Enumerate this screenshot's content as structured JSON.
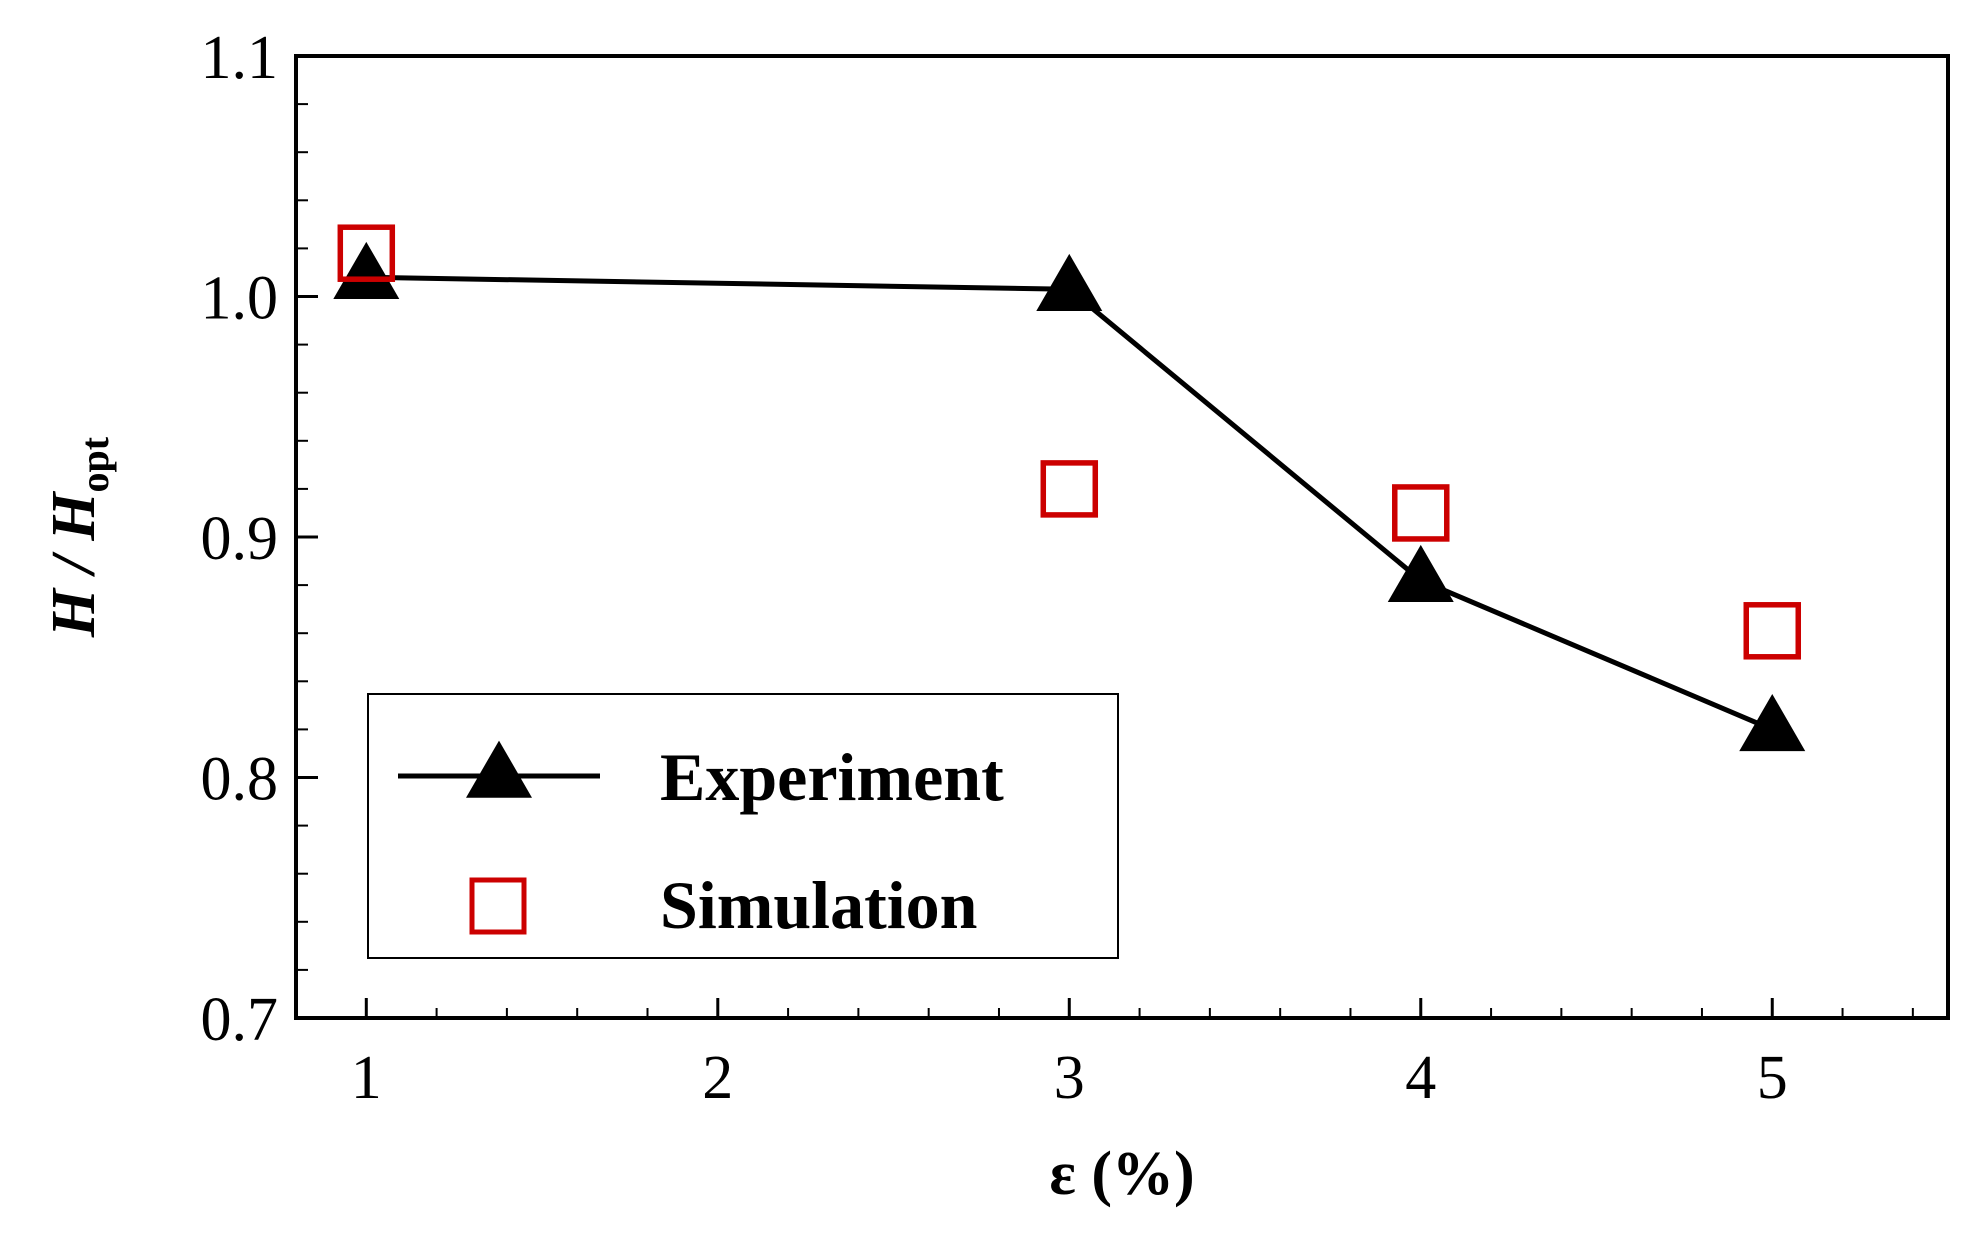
{
  "chart_data": {
    "type": "line",
    "xlabel": "ε (%)",
    "ylabel": {
      "main": "H / H",
      "subscript": "opt"
    },
    "xlim": [
      0.8,
      5.5
    ],
    "ylim": [
      0.7,
      1.1
    ],
    "x_ticks": [
      "1",
      "2",
      "3",
      "4",
      "5"
    ],
    "y_ticks": [
      "0.7",
      "0.8",
      "0.9",
      "1.0",
      "1.1"
    ],
    "grid": false,
    "legend_position": "bottom-left",
    "series": [
      {
        "name": "Experiment",
        "marker": "filled-triangle",
        "line": true,
        "color": "#000000",
        "points": [
          {
            "x": 1,
            "y": 1.008
          },
          {
            "x": 3,
            "y": 1.003
          },
          {
            "x": 4,
            "y": 0.882
          },
          {
            "x": 5,
            "y": 0.82
          }
        ]
      },
      {
        "name": "Simulation",
        "marker": "open-square",
        "line": false,
        "color": "#cc0000",
        "points": [
          {
            "x": 1,
            "y": 1.018
          },
          {
            "x": 3,
            "y": 0.92
          },
          {
            "x": 4,
            "y": 0.91
          },
          {
            "x": 5,
            "y": 0.861
          }
        ]
      }
    ]
  }
}
